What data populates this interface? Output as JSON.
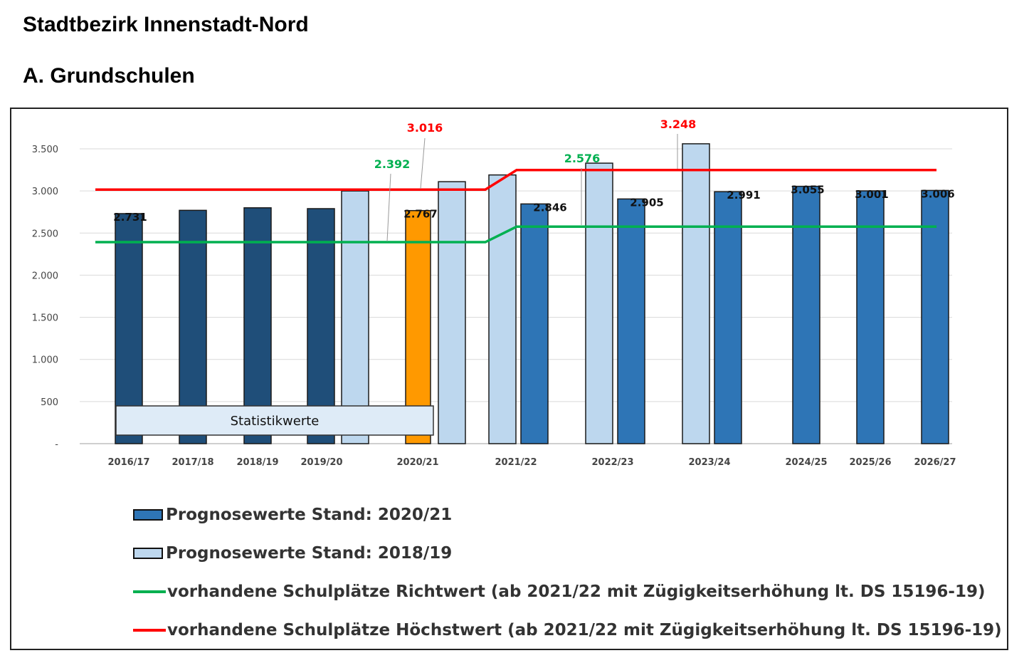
{
  "page": {
    "title": "Stadtbezirk Innenstadt-Nord",
    "subtitle": "A. Grundschulen"
  },
  "chart_data": {
    "type": "bar",
    "categories": [
      "2016/17",
      "2017/18",
      "2018/19",
      "2019/20",
      "2020/21",
      "2021/22",
      "2022/23",
      "2023/24",
      "2024/25",
      "2025/26",
      "2026/27"
    ],
    "ylim": [
      0,
      3500
    ],
    "yticks": [
      {
        "value": 0,
        "label": "-"
      },
      {
        "value": 500,
        "label": "500"
      },
      {
        "value": 1000,
        "label": "1.000"
      },
      {
        "value": 1500,
        "label": "1.500"
      },
      {
        "value": 2000,
        "label": "2.000"
      },
      {
        "value": 2500,
        "label": "2.500"
      },
      {
        "value": 3000,
        "label": "3.000"
      },
      {
        "value": 3500,
        "label": "3.500"
      }
    ],
    "grid": true,
    "series": [
      {
        "name": "Statistikwerte",
        "color": "#1f4e79",
        "values": [
          2731,
          2770,
          2800,
          2790,
          null,
          null,
          null,
          null,
          null,
          null,
          null
        ]
      },
      {
        "name": "",
        "color": "#ff9900",
        "values": [
          null,
          null,
          null,
          null,
          2767,
          null,
          null,
          null,
          null,
          null,
          null
        ]
      },
      {
        "name": "Prognosewerte Stand: 2018/19",
        "color": "#bdd7ee",
        "values": [
          null,
          null,
          null,
          3000,
          3110,
          3190,
          3330,
          3560,
          null,
          null,
          null
        ]
      },
      {
        "name": "Prognosewerte Stand: 2020/21",
        "color": "#2e75b6",
        "values": [
          null,
          null,
          null,
          null,
          null,
          2846,
          2905,
          2991,
          3055,
          3001,
          3006
        ]
      }
    ],
    "data_labels": [
      {
        "text": "2.731"
      },
      {
        "text": "2.767"
      },
      {
        "text": "2.846"
      },
      {
        "text": "2.905"
      },
      {
        "text": "2.991"
      },
      {
        "text": "3.055"
      },
      {
        "text": "3.001"
      },
      {
        "text": "3.006"
      }
    ],
    "lines": [
      {
        "name": "vorhandene Schulplätze Richtwert (ab 2021/22 mit Zügigkeitserhöhung lt. DS 15196-19)",
        "color": "#00b050",
        "values": [
          2392,
          2392,
          2392,
          2392,
          2392,
          2576,
          2576,
          2576,
          2576,
          2576,
          2576
        ]
      },
      {
        "name": "vorhandene Schulplätze Höchstwert (ab 2021/22 mit Zügigkeitserhöhung lt. DS 15196-19)",
        "color": "#ff0000",
        "values": [
          3016,
          3016,
          3016,
          3016,
          3016,
          3248,
          3248,
          3248,
          3248,
          3248,
          3248
        ]
      }
    ],
    "callouts": [
      {
        "text": "2.392",
        "color": "#00b050"
      },
      {
        "text": "3.016",
        "color": "#ff0000"
      },
      {
        "text": "2.576",
        "color": "#00b050"
      },
      {
        "text": "3.248",
        "color": "#ff0000"
      }
    ],
    "annotation_box": "Statistikwerte"
  },
  "legend": [
    {
      "label": "Prognosewerte Stand: 2020/21",
      "kind": "box",
      "color": "#2e75b6"
    },
    {
      "label": "Prognosewerte Stand: 2018/19",
      "kind": "box",
      "color": "#bdd7ee"
    },
    {
      "label": "vorhandene Schulplätze Richtwert (ab 2021/22 mit Zügigkeitserhöhung lt. DS 15196-19)",
      "kind": "line",
      "color": "#00b050"
    },
    {
      "label": "vorhandene Schulplätze Höchstwert (ab 2021/22 mit Zügigkeitserhöhung lt. DS 15196-19)",
      "kind": "line",
      "color": "#ff0000"
    }
  ]
}
